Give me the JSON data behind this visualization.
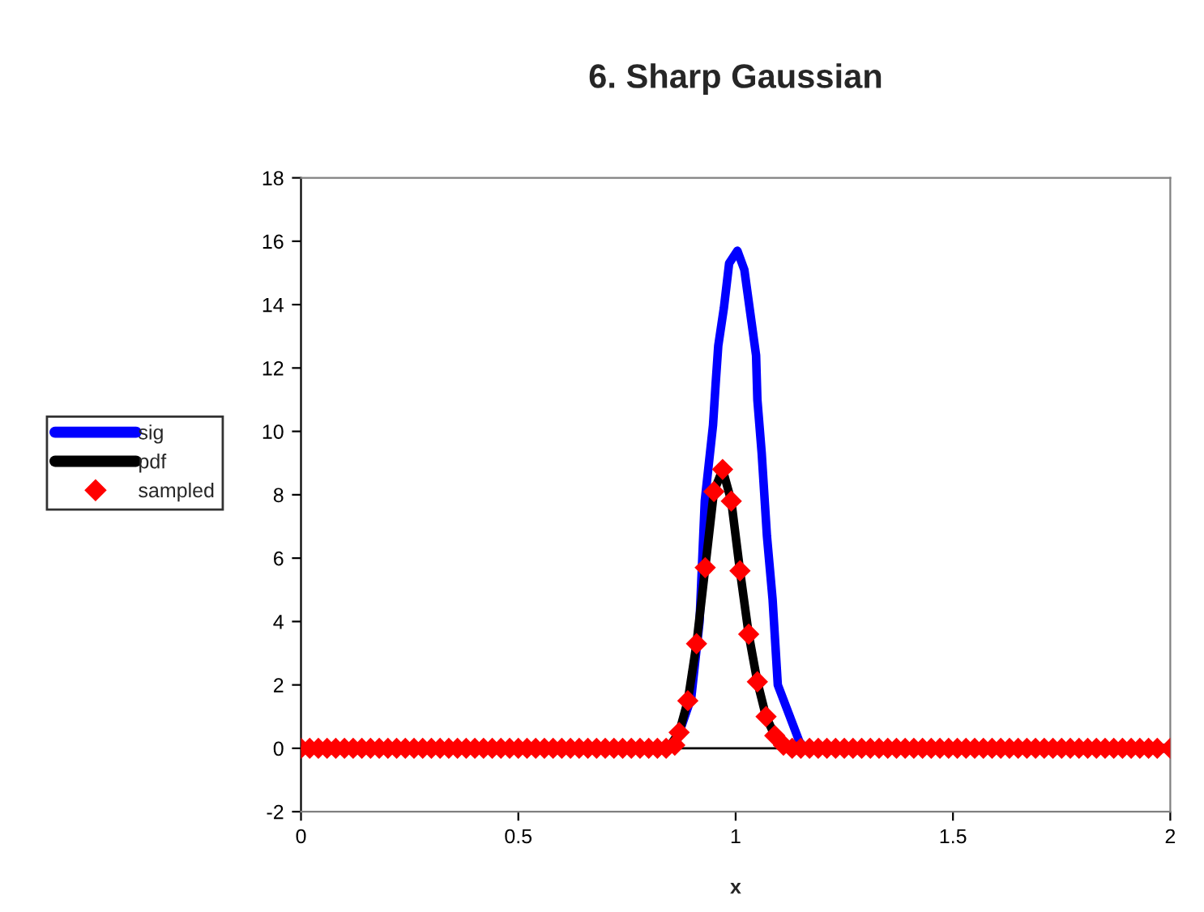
{
  "chart_data": {
    "type": "line",
    "title": "6. Sharp Gaussian",
    "xlabel": "x",
    "xlim": [
      0,
      2
    ],
    "xticks": [
      0,
      0.5,
      1,
      1.5,
      2
    ],
    "ylim": [
      -2,
      18
    ],
    "yticks": [
      -2,
      0,
      2,
      4,
      6,
      8,
      10,
      12,
      14,
      16,
      18
    ],
    "grid": false,
    "legend": "left",
    "ref_lines": [
      {
        "axis": "y",
        "value": 0,
        "color": "#000000"
      }
    ],
    "series": [
      {
        "name": "sig",
        "color": "#0000ff",
        "x": [
          0,
          0.86,
          0.873,
          0.898,
          0.917,
          0.929,
          0.948,
          0.954,
          0.96,
          0.973,
          0.985,
          1.004,
          1.02,
          1.035,
          1.047,
          1.05,
          1.06,
          1.072,
          1.085,
          1.097,
          1.122,
          1.147,
          1.16,
          2
        ],
        "values": [
          0,
          0,
          0.6,
          1.6,
          4.0,
          7.8,
          10.2,
          11.5,
          12.7,
          13.9,
          15.3,
          15.7,
          15.1,
          13.6,
          12.4,
          11.0,
          9.3,
          6.7,
          4.7,
          2.0,
          1.1,
          0.2,
          0,
          0
        ]
      },
      {
        "name": "pdf",
        "color": "#000000",
        "x": [
          0,
          0.83,
          0.85,
          0.87,
          0.89,
          0.91,
          0.93,
          0.95,
          0.97,
          0.99,
          1.01,
          1.03,
          1.05,
          1.07,
          1.09,
          1.11,
          1.13,
          2
        ],
        "values": [
          0,
          0,
          0.1,
          0.5,
          1.5,
          3.3,
          5.7,
          8.1,
          8.8,
          7.8,
          5.6,
          3.6,
          2.1,
          1.0,
          0.4,
          0.1,
          0,
          0
        ]
      },
      {
        "name": "sampled",
        "type": "scatter",
        "color": "#ff0000",
        "marker": "diamond",
        "x": [
          0,
          0.02,
          0.04,
          0.06,
          0.08,
          0.1,
          0.12,
          0.14,
          0.16,
          0.18,
          0.2,
          0.22,
          0.24,
          0.26,
          0.28,
          0.3,
          0.32,
          0.34,
          0.36,
          0.38,
          0.4,
          0.42,
          0.44,
          0.46,
          0.48,
          0.5,
          0.52,
          0.54,
          0.56,
          0.58,
          0.6,
          0.62,
          0.64,
          0.66,
          0.68,
          0.7,
          0.72,
          0.74,
          0.76,
          0.78,
          0.8,
          0.82,
          0.84,
          0.86,
          0.87,
          0.89,
          0.91,
          0.93,
          0.95,
          0.97,
          0.99,
          1.01,
          1.03,
          1.05,
          1.07,
          1.09,
          1.11,
          1.13,
          1.15,
          1.17,
          1.19,
          1.21,
          1.23,
          1.25,
          1.27,
          1.29,
          1.31,
          1.33,
          1.35,
          1.37,
          1.39,
          1.41,
          1.43,
          1.45,
          1.47,
          1.49,
          1.51,
          1.53,
          1.55,
          1.57,
          1.59,
          1.61,
          1.63,
          1.65,
          1.67,
          1.69,
          1.71,
          1.73,
          1.75,
          1.77,
          1.79,
          1.81,
          1.83,
          1.85,
          1.87,
          1.89,
          1.91,
          1.93,
          1.95,
          1.97,
          2
        ],
        "values": [
          0,
          0,
          0,
          0,
          0,
          0,
          0,
          0,
          0,
          0,
          0,
          0,
          0,
          0,
          0,
          0,
          0,
          0,
          0,
          0,
          0,
          0,
          0,
          0,
          0,
          0,
          0,
          0,
          0,
          0,
          0,
          0,
          0,
          0,
          0,
          0,
          0,
          0,
          0,
          0,
          0,
          0,
          0,
          0.1,
          0.5,
          1.5,
          3.3,
          5.7,
          8.1,
          8.8,
          7.8,
          5.6,
          3.6,
          2.1,
          1.0,
          0.4,
          0.1,
          0,
          0,
          0,
          0,
          0,
          0,
          0,
          0,
          0,
          0,
          0,
          0,
          0,
          0,
          0,
          0,
          0,
          0,
          0,
          0,
          0,
          0,
          0,
          0,
          0,
          0,
          0,
          0,
          0,
          0,
          0,
          0,
          0,
          0,
          0,
          0,
          0,
          0,
          0,
          0,
          0,
          0,
          0,
          0
        ]
      }
    ]
  }
}
